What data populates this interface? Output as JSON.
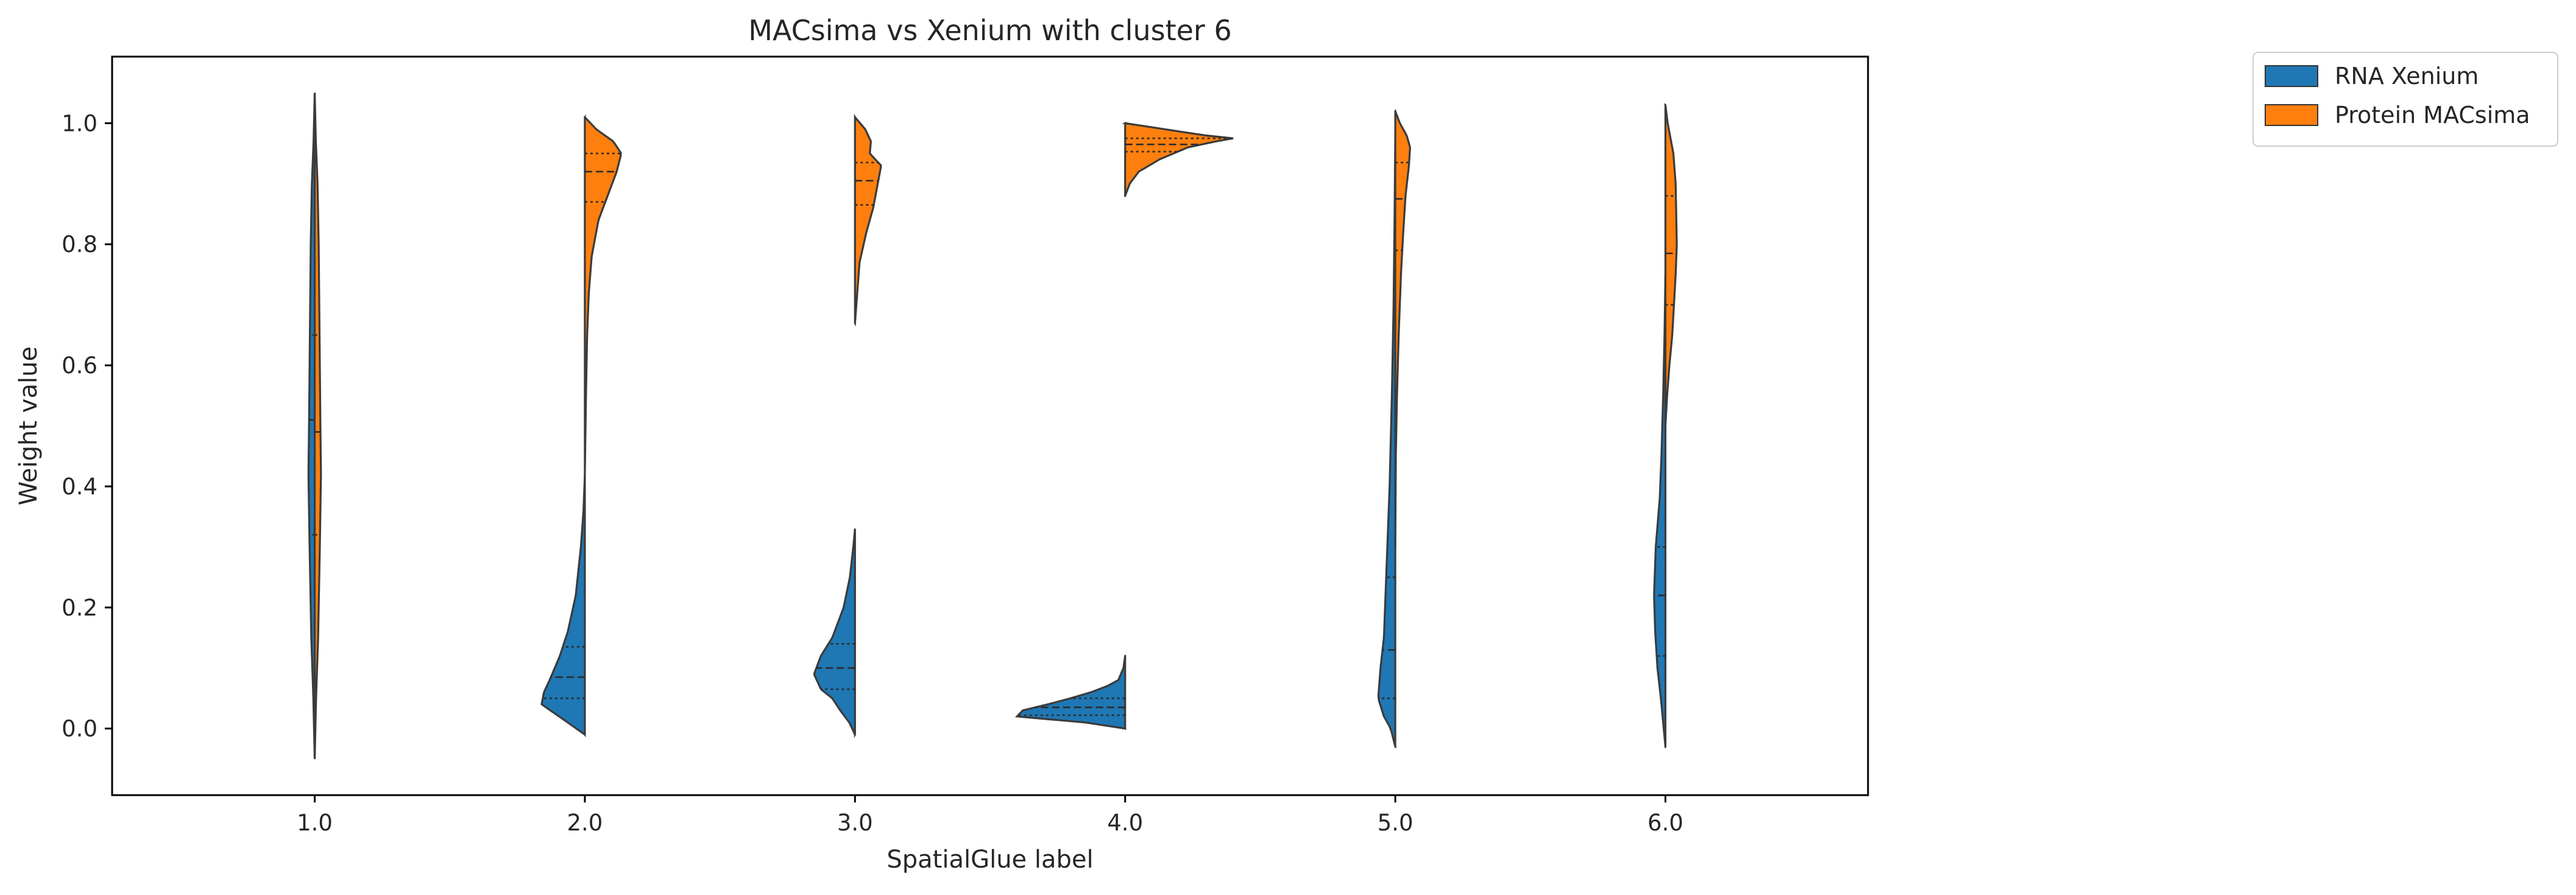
{
  "chart_data": {
    "type": "violin",
    "title": "MACsima vs Xenium with cluster 6",
    "xlabel": "SpatialGlue label",
    "ylabel": "Weight value",
    "categories": [
      "1.0",
      "2.0",
      "3.0",
      "4.0",
      "5.0",
      "6.0"
    ],
    "ylim": [
      -0.11,
      1.11
    ],
    "yticks": [
      "0.0",
      "0.2",
      "0.4",
      "0.6",
      "0.8",
      "1.0"
    ],
    "ytick_values": [
      0.0,
      0.2,
      0.4,
      0.6,
      0.8,
      1.0
    ],
    "split": true,
    "inner": "quartile",
    "grid": false,
    "legend": {
      "placement": "outside-top-right"
    },
    "series": [
      {
        "name": "RNA Xenium",
        "side": "left",
        "color": "#1f77b4",
        "violins": [
          {
            "category": "1.0",
            "range": [
              -0.05,
              1.05
            ],
            "quartiles": [
              0.32,
              0.51,
              0.65
            ],
            "density": [
              [
                -0.05,
                0.0
              ],
              [
                0.05,
                0.012
              ],
              [
                0.15,
                0.03
              ],
              [
                0.3,
                0.045
              ],
              [
                0.42,
                0.055
              ],
              [
                0.5,
                0.05
              ],
              [
                0.6,
                0.045
              ],
              [
                0.7,
                0.04
              ],
              [
                0.8,
                0.035
              ],
              [
                0.9,
                0.025
              ],
              [
                0.97,
                0.01
              ],
              [
                1.05,
                0.0
              ]
            ]
          },
          {
            "category": "2.0",
            "range": [
              -0.01,
              0.42
            ],
            "quartiles": [
              0.05,
              0.085,
              0.135
            ],
            "density": [
              [
                -0.01,
                0.0
              ],
              [
                0.01,
                0.15
              ],
              [
                0.04,
                0.38
              ],
              [
                0.06,
                0.36
              ],
              [
                0.08,
                0.31
              ],
              [
                0.12,
                0.22
              ],
              [
                0.16,
                0.15
              ],
              [
                0.22,
                0.08
              ],
              [
                0.3,
                0.035
              ],
              [
                0.36,
                0.012
              ],
              [
                0.42,
                0.0
              ]
            ]
          },
          {
            "category": "3.0",
            "range": [
              -0.01,
              0.33
            ],
            "quartiles": [
              0.065,
              0.1,
              0.14
            ],
            "density": [
              [
                -0.01,
                0.0
              ],
              [
                0.01,
                0.05
              ],
              [
                0.03,
                0.13
              ],
              [
                0.05,
                0.2
              ],
              [
                0.065,
                0.3
              ],
              [
                0.09,
                0.36
              ],
              [
                0.12,
                0.3
              ],
              [
                0.15,
                0.2
              ],
              [
                0.2,
                0.1
              ],
              [
                0.25,
                0.045
              ],
              [
                0.3,
                0.015
              ],
              [
                0.33,
                0.0
              ]
            ]
          },
          {
            "category": "4.0",
            "range": [
              0.0,
              0.12
            ],
            "quartiles": [
              0.022,
              0.035,
              0.05
            ],
            "density": [
              [
                0.0,
                0.0
              ],
              [
                0.01,
                0.35
              ],
              [
                0.02,
                0.95
              ],
              [
                0.03,
                0.9
              ],
              [
                0.04,
                0.68
              ],
              [
                0.05,
                0.48
              ],
              [
                0.06,
                0.3
              ],
              [
                0.07,
                0.16
              ],
              [
                0.08,
                0.06
              ],
              [
                0.1,
                0.015
              ],
              [
                0.12,
                0.0
              ]
            ]
          },
          {
            "category": "5.0",
            "range": [
              -0.03,
              0.98
            ],
            "quartiles": [
              0.05,
              0.13,
              0.25
            ],
            "density": [
              [
                -0.03,
                0.0
              ],
              [
                0.0,
                0.04
              ],
              [
                0.02,
                0.1
              ],
              [
                0.05,
                0.15
              ],
              [
                0.1,
                0.13
              ],
              [
                0.15,
                0.1
              ],
              [
                0.2,
                0.09
              ],
              [
                0.3,
                0.07
              ],
              [
                0.4,
                0.05
              ],
              [
                0.55,
                0.03
              ],
              [
                0.7,
                0.015
              ],
              [
                0.85,
                0.006
              ],
              [
                0.98,
                0.0
              ]
            ]
          },
          {
            "category": "6.0",
            "range": [
              -0.03,
              0.75
            ],
            "quartiles": [
              0.12,
              0.22,
              0.3
            ],
            "density": [
              [
                -0.03,
                0.0
              ],
              [
                0.0,
                0.015
              ],
              [
                0.05,
                0.04
              ],
              [
                0.1,
                0.07
              ],
              [
                0.16,
                0.09
              ],
              [
                0.22,
                0.1
              ],
              [
                0.3,
                0.085
              ],
              [
                0.38,
                0.05
              ],
              [
                0.45,
                0.035
              ],
              [
                0.55,
                0.02
              ],
              [
                0.65,
                0.008
              ],
              [
                0.75,
                0.0
              ]
            ]
          }
        ]
      },
      {
        "name": "Protein MACsima",
        "side": "right",
        "color": "#ff7f0e",
        "violins": [
          {
            "category": "1.0",
            "range": [
              -0.05,
              1.05
            ],
            "quartiles": [
              0.32,
              0.49,
              0.65
            ],
            "density": [
              [
                -0.05,
                0.0
              ],
              [
                0.05,
                0.012
              ],
              [
                0.15,
                0.03
              ],
              [
                0.3,
                0.045
              ],
              [
                0.42,
                0.055
              ],
              [
                0.5,
                0.05
              ],
              [
                0.6,
                0.045
              ],
              [
                0.7,
                0.04
              ],
              [
                0.8,
                0.035
              ],
              [
                0.9,
                0.025
              ],
              [
                0.97,
                0.01
              ],
              [
                1.05,
                0.0
              ]
            ]
          },
          {
            "category": "2.0",
            "range": [
              0.42,
              1.01
            ],
            "quartiles": [
              0.87,
              0.92,
              0.95
            ],
            "density": [
              [
                0.42,
                0.0
              ],
              [
                0.55,
                0.01
              ],
              [
                0.65,
                0.02
              ],
              [
                0.72,
                0.035
              ],
              [
                0.78,
                0.06
              ],
              [
                0.84,
                0.12
              ],
              [
                0.88,
                0.2
              ],
              [
                0.92,
                0.28
              ],
              [
                0.95,
                0.32
              ],
              [
                0.97,
                0.25
              ],
              [
                0.99,
                0.1
              ],
              [
                1.01,
                0.0
              ]
            ]
          },
          {
            "category": "3.0",
            "range": [
              0.67,
              1.01
            ],
            "quartiles": [
              0.865,
              0.905,
              0.935
            ],
            "density": [
              [
                0.67,
                0.0
              ],
              [
                0.72,
                0.02
              ],
              [
                0.77,
                0.04
              ],
              [
                0.82,
                0.1
              ],
              [
                0.86,
                0.16
              ],
              [
                0.9,
                0.2
              ],
              [
                0.93,
                0.23
              ],
              [
                0.95,
                0.13
              ],
              [
                0.97,
                0.14
              ],
              [
                0.99,
                0.09
              ],
              [
                1.01,
                0.0
              ]
            ]
          },
          {
            "category": "4.0",
            "range": [
              0.88,
              1.0
            ],
            "quartiles": [
              0.953,
              0.965,
              0.975
            ],
            "density": [
              [
                0.88,
                0.0
              ],
              [
                0.9,
                0.04
              ],
              [
                0.92,
                0.12
              ],
              [
                0.94,
                0.3
              ],
              [
                0.96,
                0.55
              ],
              [
                0.97,
                0.8
              ],
              [
                0.975,
                0.95
              ],
              [
                0.98,
                0.7
              ],
              [
                0.99,
                0.35
              ],
              [
                1.0,
                0.0
              ]
            ]
          },
          {
            "category": "5.0",
            "range": [
              0.3,
              1.02
            ],
            "quartiles": [
              0.79,
              0.875,
              0.935
            ],
            "density": [
              [
                0.3,
                0.0
              ],
              [
                0.45,
                0.005
              ],
              [
                0.55,
                0.015
              ],
              [
                0.65,
                0.03
              ],
              [
                0.75,
                0.05
              ],
              [
                0.82,
                0.07
              ],
              [
                0.88,
                0.09
              ],
              [
                0.93,
                0.12
              ],
              [
                0.96,
                0.13
              ],
              [
                0.98,
                0.1
              ],
              [
                1.0,
                0.04
              ],
              [
                1.02,
                0.0
              ]
            ]
          },
          {
            "category": "6.0",
            "range": [
              0.5,
              1.03
            ],
            "quartiles": [
              0.7,
              0.785,
              0.88
            ],
            "density": [
              [
                0.5,
                0.0
              ],
              [
                0.55,
                0.015
              ],
              [
                0.6,
                0.035
              ],
              [
                0.65,
                0.06
              ],
              [
                0.7,
                0.075
              ],
              [
                0.75,
                0.09
              ],
              [
                0.8,
                0.1
              ],
              [
                0.85,
                0.095
              ],
              [
                0.9,
                0.09
              ],
              [
                0.95,
                0.07
              ],
              [
                1.0,
                0.02
              ],
              [
                1.03,
                0.0
              ]
            ]
          }
        ]
      }
    ]
  }
}
